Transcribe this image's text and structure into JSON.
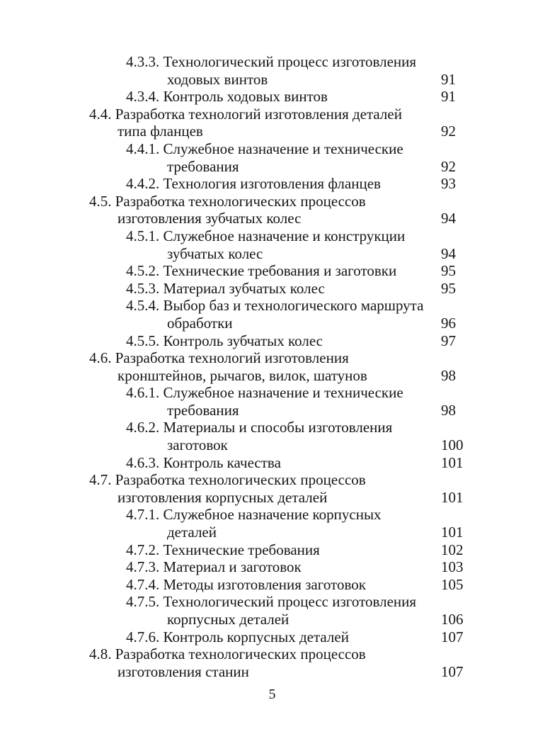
{
  "page": {
    "background_color": "#ffffff",
    "text_color": "#161616",
    "folio": "5"
  },
  "toc": {
    "entries": [
      {
        "number": "4.3.3.",
        "level": 3,
        "lines": [
          "Технологический процесс изготовления",
          "ходовых винтов"
        ],
        "page": "91"
      },
      {
        "number": "4.3.4.",
        "level": 3,
        "lines": [
          "Контроль ходовых винтов"
        ],
        "page": "91"
      },
      {
        "number": "4.4.",
        "level": 2,
        "lines": [
          "Разработка технологий изготовления деталей",
          "типа фланцев"
        ],
        "page": "92"
      },
      {
        "number": "4.4.1.",
        "level": 3,
        "lines": [
          "Служебное назначение и технические",
          "требования"
        ],
        "page": "92"
      },
      {
        "number": "4.4.2.",
        "level": 3,
        "lines": [
          "Технология изготовления фланцев"
        ],
        "page": "93"
      },
      {
        "number": "4.5.",
        "level": 2,
        "lines": [
          "Разработка технологических процессов",
          "изготовления зубчатых колес"
        ],
        "page": "94"
      },
      {
        "number": "4.5.1.",
        "level": 3,
        "lines": [
          "Служебное назначение и конструкции",
          "зубчатых колес"
        ],
        "page": "94"
      },
      {
        "number": "4.5.2.",
        "level": 3,
        "lines": [
          "Технические требования и заготовки"
        ],
        "page": "95"
      },
      {
        "number": "4.5.3.",
        "level": 3,
        "lines": [
          "Материал зубчатых колес"
        ],
        "page": "95"
      },
      {
        "number": "4.5.4.",
        "level": 3,
        "lines": [
          "Выбор баз и технологического маршрута",
          "обработки"
        ],
        "page": "96"
      },
      {
        "number": "4.5.5.",
        "level": 3,
        "lines": [
          "Контроль зубчатых колес"
        ],
        "page": "97"
      },
      {
        "number": "4.6.",
        "level": 2,
        "lines": [
          "Разработка технологий изготовления",
          "кронштейнов, рычагов, вилок, шатунов"
        ],
        "page": "98"
      },
      {
        "number": "4.6.1.",
        "level": 3,
        "lines": [
          "Служебное назначение и технические",
          "требования"
        ],
        "page": "98"
      },
      {
        "number": "4.6.2.",
        "level": 3,
        "lines": [
          "Материалы и способы изготовления",
          "заготовок"
        ],
        "page": "100"
      },
      {
        "number": "4.6.3.",
        "level": 3,
        "lines": [
          "Контроль качества"
        ],
        "page": "101"
      },
      {
        "number": "4.7.",
        "level": 2,
        "lines": [
          "Разработка технологических процессов",
          "изготовления корпусных деталей"
        ],
        "page": "101"
      },
      {
        "number": "4.7.1.",
        "level": 3,
        "lines": [
          "Служебное назначение корпусных",
          "деталей"
        ],
        "page": "101"
      },
      {
        "number": "4.7.2.",
        "level": 3,
        "lines": [
          "Технические требования"
        ],
        "page": "102"
      },
      {
        "number": "4.7.3.",
        "level": 3,
        "lines": [
          "Материал и заготовок"
        ],
        "page": "103"
      },
      {
        "number": "4.7.4.",
        "level": 3,
        "lines": [
          "Методы изготовления заготовок"
        ],
        "page": "105"
      },
      {
        "number": "4.7.5.",
        "level": 3,
        "lines": [
          "Технологический процесс изготовления",
          "корпусных деталей"
        ],
        "page": "106"
      },
      {
        "number": "4.7.6.",
        "level": 3,
        "lines": [
          "Контроль корпусных деталей"
        ],
        "page": "107"
      },
      {
        "number": "4.8.",
        "level": 2,
        "lines": [
          "Разработка технологических процессов",
          "изготовления станин"
        ],
        "page": "107"
      }
    ]
  }
}
